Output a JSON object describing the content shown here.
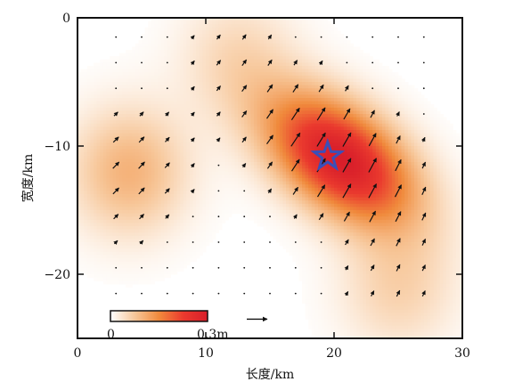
{
  "chart_data": {
    "type": "heatmap",
    "title": "",
    "xlabel": "长度/km",
    "ylabel": "宽度/km",
    "xlim": [
      0,
      30
    ],
    "ylim": [
      -25,
      0
    ],
    "x_ticks": [
      "0",
      "10",
      "20",
      "30"
    ],
    "y_ticks": [
      "0",
      "−10",
      "−20"
    ],
    "grid": false,
    "colorscale": [
      "#ffffff",
      "#f7c79a",
      "#f08a3c",
      "#ea3a2e",
      "#d81e2a"
    ],
    "colorbar": {
      "min_label": "0",
      "max_label": "0.3m",
      "min": 0,
      "max": 0.3,
      "placement": "bottom-left"
    },
    "slip_peaks": [
      {
        "x": 20.5,
        "y": -11.0,
        "slip": 0.3
      },
      {
        "x": 4.0,
        "y": -12.0,
        "slip": 0.1
      },
      {
        "x": 12.5,
        "y": -3.0,
        "slip": 0.05
      },
      {
        "x": 25.0,
        "y": -21.0,
        "slip": 0.06
      }
    ],
    "epicenter": {
      "x": 19.5,
      "y": -10.8,
      "marker": "star-icon",
      "color": "#3b4fb8"
    },
    "reference_vector_y": -23.5,
    "vector_color": "#111111"
  }
}
